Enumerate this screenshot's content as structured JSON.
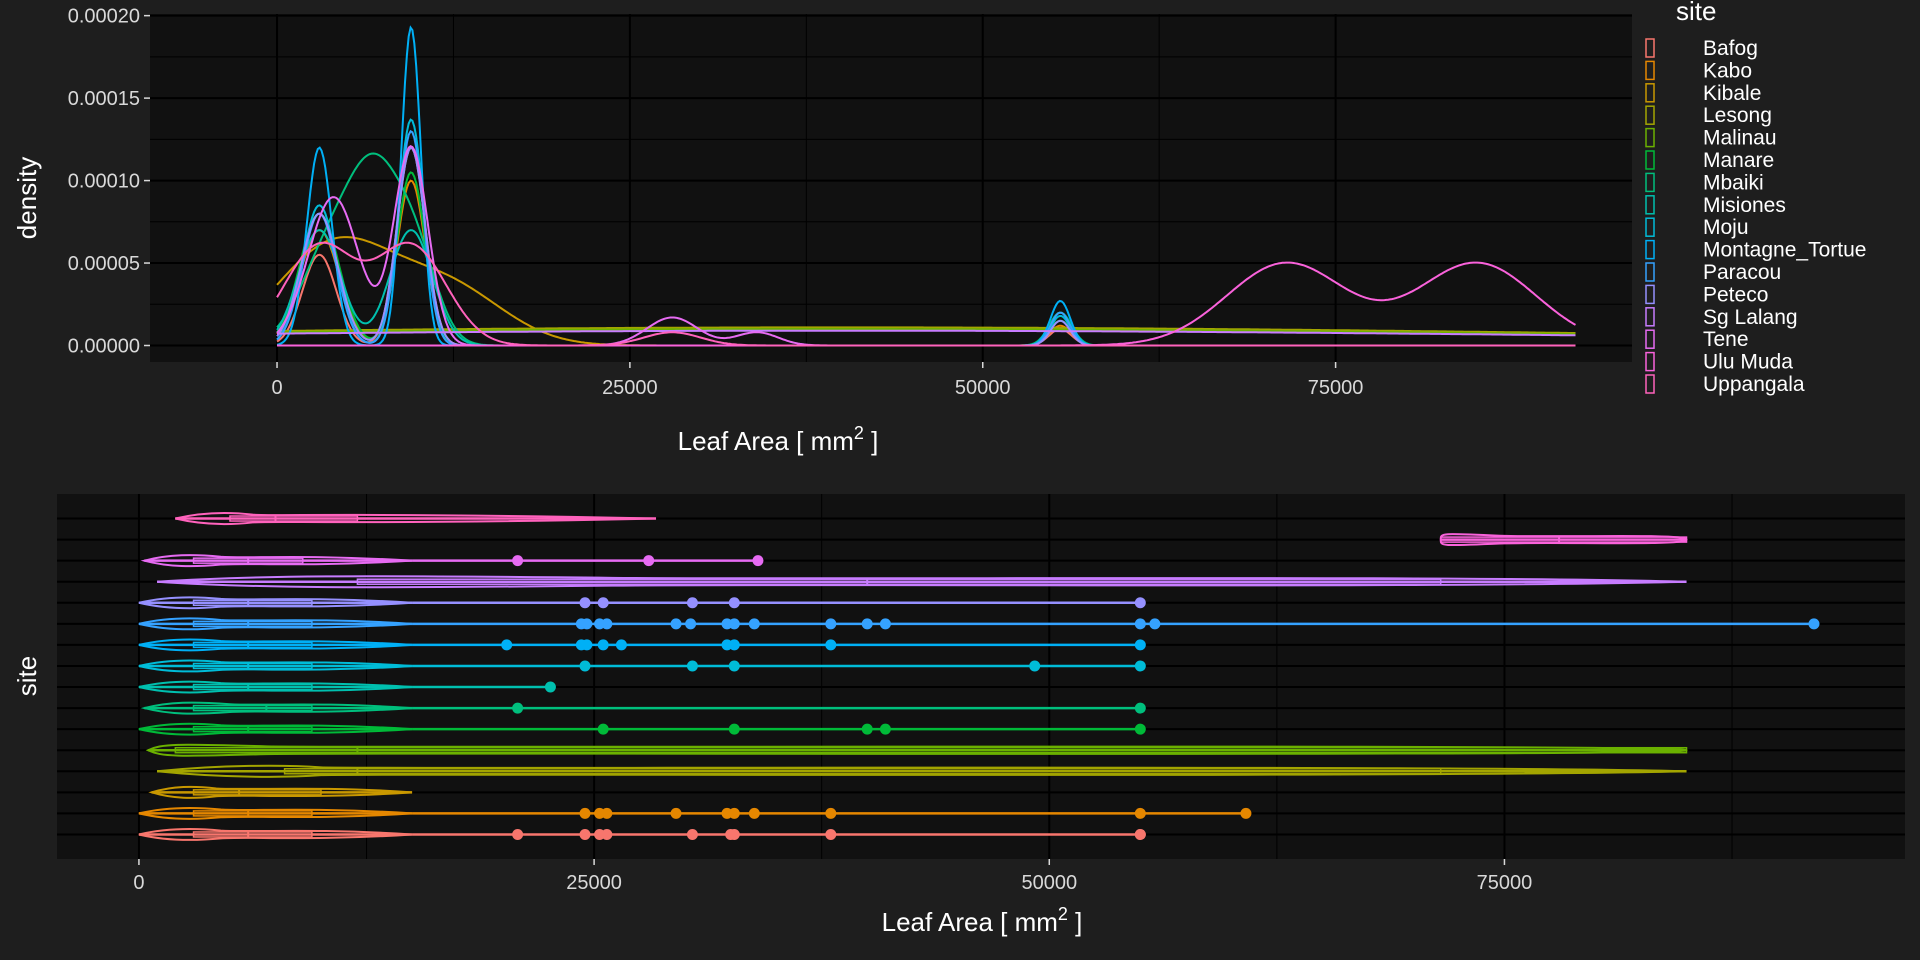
{
  "figure": {
    "background": "#1e1e1e",
    "panel_background": "#111111",
    "grid_color": "#000000",
    "text_color": "#d9d9d9",
    "label_color": "#ffffff"
  },
  "chart_data": [
    {
      "type": "line",
      "subtype": "density",
      "xlabel_main": "Leaf Area [ mm",
      "xlabel_sup": "2",
      "xlabel_end": " ]",
      "ylabel": "density",
      "xlim": [
        -9000,
        96000
      ],
      "ylim": [
        -1e-05,
        0.000201
      ],
      "xticks": [
        0,
        25000,
        50000,
        75000
      ],
      "xtick_labels": [
        "0",
        "25000",
        "50000",
        "75000"
      ],
      "yticks": [
        0,
        5e-05,
        0.0001,
        0.00015,
        0.0002
      ],
      "ytick_labels": [
        "0.00000",
        "0.00005",
        "0.00010",
        "0.00015",
        "0.00020"
      ],
      "grid": true,
      "legend": {
        "title": "site",
        "position": "right",
        "entries": [
          "Bafog",
          "Kabo",
          "Kibale",
          "Lesong",
          "Malinau",
          "Manare",
          "Mbaiki",
          "Misiones",
          "Moju",
          "Montagne_Tortue",
          "Paracou",
          "Peteco",
          "Sg Lalang",
          "Tene",
          "Ulu Muda",
          "Uppangala"
        ]
      },
      "x_range": [
        0,
        92000
      ],
      "series": [
        {
          "name": "Bafog",
          "color": "#F8766D",
          "peaks": [
            [
              3000,
              5.5e-05,
              1200
            ],
            [
              9500,
              0.00012,
              1000
            ],
            [
              55500,
              1e-05,
              800
            ]
          ]
        },
        {
          "name": "Kabo",
          "color": "#E58700",
          "peaks": [
            [
              3000,
              7e-05,
              1400
            ],
            [
              9500,
              0.0001,
              1000
            ],
            [
              55500,
              1.2e-05,
              800
            ]
          ]
        },
        {
          "name": "Kibale",
          "color": "#C99800",
          "peaks": [
            [
              4000,
              6e-05,
              4000
            ],
            [
              12000,
              3.5e-05,
              4000
            ]
          ]
        },
        {
          "name": "Lesong",
          "color": "#A3A500",
          "peaks": [
            [
              40000,
              1.1e-05,
              60000
            ]
          ]
        },
        {
          "name": "Malinau",
          "color": "#6BB100",
          "peaks": [
            [
              40000,
              1e-05,
              60000
            ]
          ]
        },
        {
          "name": "Manare",
          "color": "#00BA38",
          "peaks": [
            [
              3000,
              8e-05,
              1400
            ],
            [
              9500,
              0.000105,
              1000
            ],
            [
              55500,
              1.5e-05,
              800
            ]
          ]
        },
        {
          "name": "Mbaiki",
          "color": "#00BF7D",
          "peaks": [
            [
              3500,
              5e-05,
              2000
            ],
            [
              7000,
              0.0001,
              2000
            ],
            [
              10000,
              4e-05,
              1500
            ],
            [
              55500,
              2e-05,
              800
            ]
          ]
        },
        {
          "name": "Misiones",
          "color": "#00C0AF",
          "peaks": [
            [
              3000,
              7e-05,
              1500
            ],
            [
              9500,
              7e-05,
              1500
            ]
          ]
        },
        {
          "name": "Moju",
          "color": "#00BCD8",
          "peaks": [
            [
              3000,
              8.5e-05,
              1200
            ],
            [
              9500,
              0.000137,
              900
            ],
            [
              55500,
              1.8e-05,
              700
            ]
          ]
        },
        {
          "name": "Montagne_Tortue",
          "color": "#00B0F6",
          "peaks": [
            [
              3000,
              0.00012,
              900
            ],
            [
              9500,
              0.000193,
              700
            ],
            [
              55500,
              2.7e-05,
              700
            ]
          ]
        },
        {
          "name": "Paracou",
          "color": "#35A2FF",
          "peaks": [
            [
              3000,
              8e-05,
              1200
            ],
            [
              9500,
              0.00013,
              900
            ],
            [
              55500,
              2e-05,
              700
            ]
          ]
        },
        {
          "name": "Peteco",
          "color": "#9590FF",
          "peaks": [
            [
              3000,
              8e-05,
              1300
            ],
            [
              9500,
              0.00012,
              1000
            ],
            [
              55500,
              1.5e-05,
              700
            ]
          ]
        },
        {
          "name": "Sg Lalang",
          "color": "#C77CFF",
          "peaks": [
            [
              40000,
              9e-06,
              60000
            ]
          ]
        },
        {
          "name": "Tene",
          "color": "#E76BF3",
          "peaks": [
            [
              4000,
              9e-05,
              1800
            ],
            [
              9500,
              0.00012,
              1200
            ],
            [
              28000,
              1.7e-05,
              1800
            ],
            [
              34000,
              8e-06,
              1500
            ]
          ]
        },
        {
          "name": "Ulu Muda",
          "color": "#FA62DB",
          "peaks": [
            [
              71500,
              5e-05,
              4200
            ],
            [
              85000,
              5e-05,
              4200
            ]
          ]
        },
        {
          "name": "Uppangala",
          "color": "#FF62BC",
          "peaks": [
            [
              3000,
              6e-05,
              2500
            ],
            [
              9500,
              6e-05,
              2500
            ],
            [
              28000,
              8e-06,
              2000
            ]
          ]
        }
      ]
    },
    {
      "type": "violin",
      "xlabel_main": "Leaf Area [ mm",
      "xlabel_sup": "2",
      "xlabel_end": " ]",
      "ylabel": "site",
      "xlim": [
        -4500,
        97000
      ],
      "xticks": [
        0,
        25000,
        50000,
        75000
      ],
      "xtick_labels": [
        "0",
        "25000",
        "50000",
        "75000"
      ],
      "grid": true,
      "rows": [
        {
          "site": "Bafog",
          "color": "#F8766D",
          "min": 0,
          "q1": 3000,
          "med": 6000,
          "q3": 9500,
          "max": 15000,
          "wmax": 15000,
          "outliers": [
            20800,
            24500,
            25300,
            25700,
            30400,
            32500,
            32700,
            38000,
            55000,
            55000
          ]
        },
        {
          "site": "Kabo",
          "color": "#E58700",
          "min": 0,
          "q1": 3000,
          "med": 6000,
          "q3": 9500,
          "max": 15000,
          "wmax": 15000,
          "outliers": [
            24500,
            25300,
            25700,
            29500,
            32300,
            32700,
            33800,
            38000,
            55000,
            60800
          ]
        },
        {
          "site": "Kibale",
          "color": "#C99800",
          "min": 700,
          "q1": 3000,
          "med": 5500,
          "q3": 10000,
          "max": 15000,
          "wmax": 15000,
          "outliers": []
        },
        {
          "site": "Lesong",
          "color": "#A3A500",
          "min": 1000,
          "q1": 8000,
          "med": 12000,
          "q3": 71500,
          "max": 85000,
          "wmax": 85000,
          "outliers": []
        },
        {
          "site": "Malinau",
          "color": "#6BB100",
          "min": 500,
          "q1": 2000,
          "med": 12000,
          "q3": 85000,
          "max": 85000,
          "wmax": 85000,
          "outliers": []
        },
        {
          "site": "Manare",
          "color": "#00BA38",
          "min": 0,
          "q1": 3000,
          "med": 6000,
          "q3": 9500,
          "max": 15000,
          "wmax": 15000,
          "outliers": [
            25500,
            32700,
            40000,
            41000,
            55000
          ]
        },
        {
          "site": "Mbaiki",
          "color": "#00BF7D",
          "min": 300,
          "q1": 3000,
          "med": 7000,
          "q3": 9500,
          "max": 15000,
          "wmax": 15000,
          "outliers": [
            20800,
            55000
          ]
        },
        {
          "site": "Misiones",
          "color": "#00C0AF",
          "min": 0,
          "q1": 3000,
          "med": 6000,
          "q3": 9500,
          "max": 15000,
          "wmax": 15000,
          "outliers": [
            22600
          ]
        },
        {
          "site": "Moju",
          "color": "#00BCD8",
          "min": 0,
          "q1": 3000,
          "med": 6000,
          "q3": 9500,
          "max": 15000,
          "wmax": 15000,
          "outliers": [
            24500,
            30400,
            32700,
            49200,
            55000
          ]
        },
        {
          "site": "Montagne_Tortue",
          "color": "#00B0F6",
          "min": 0,
          "q1": 3000,
          "med": 6000,
          "q3": 9500,
          "max": 15000,
          "wmax": 15000,
          "outliers": [
            20200,
            24300,
            24600,
            25500,
            26500,
            32300,
            32700,
            38000,
            55000
          ]
        },
        {
          "site": "Paracou",
          "color": "#35A2FF",
          "min": 0,
          "q1": 3000,
          "med": 6000,
          "q3": 9500,
          "max": 15000,
          "wmax": 15000,
          "outliers": [
            24300,
            24600,
            25300,
            25700,
            29500,
            30300,
            32300,
            32700,
            33800,
            38000,
            40000,
            41000,
            55000,
            55800,
            92000
          ]
        },
        {
          "site": "Peteco",
          "color": "#9590FF",
          "min": 0,
          "q1": 3000,
          "med": 6000,
          "q3": 9500,
          "max": 15000,
          "wmax": 15000,
          "outliers": [
            24500,
            25500,
            30400,
            32700,
            55000
          ]
        },
        {
          "site": "Sg Lalang",
          "color": "#C77CFF",
          "min": 1000,
          "q1": 12000,
          "med": 40000,
          "q3": 71500,
          "max": 85000,
          "wmax": 85000,
          "outliers": []
        },
        {
          "site": "Tene",
          "color": "#E76BF3",
          "min": 300,
          "q1": 3000,
          "med": 6000,
          "q3": 9000,
          "max": 15000,
          "wmax": 15000,
          "outliers": [
            20800,
            28000,
            34000
          ]
        },
        {
          "site": "Ulu Muda",
          "color": "#FA62DB",
          "min": 71500,
          "q1": 71500,
          "med": 78000,
          "q3": 85000,
          "max": 85000,
          "wmax": 85000,
          "outliers": []
        },
        {
          "site": "Uppangala",
          "color": "#FF62BC",
          "min": 2000,
          "q1": 5000,
          "med": 7500,
          "q3": 12000,
          "max": 28400,
          "wmax": 28400,
          "outliers": []
        }
      ]
    }
  ]
}
